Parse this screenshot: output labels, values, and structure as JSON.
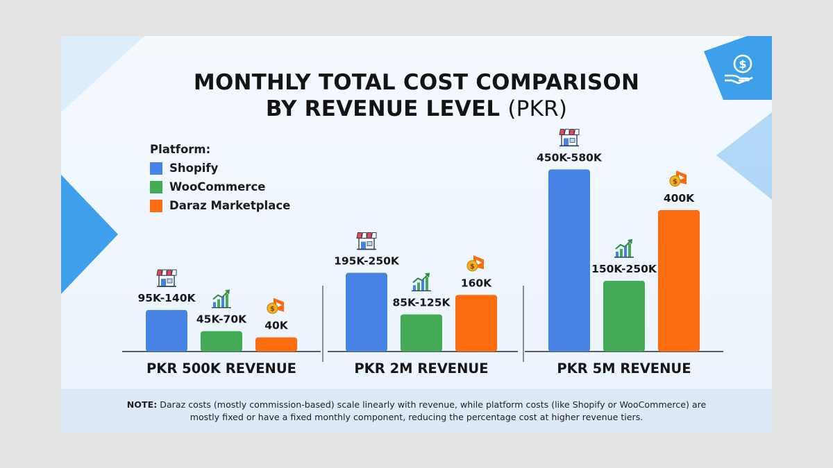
{
  "title_line1": "MONTHLY TOTAL COST COMPARISON",
  "title_line2": "BY REVENUE LEVEL",
  "title_unit": "(PKR)",
  "legend": {
    "title": "Platform:",
    "items": [
      "Shopify",
      "WooCommerce",
      "Daraz Marketplace"
    ]
  },
  "note": {
    "label": "NOTE:",
    "text": "Daraz costs (mostly commission-based) scale linearly with revenue, while platform costs (like Shopify or WooCommerce) are mostly fixed or have a fixed monthly component, reducing the percentage cost at higher revenue tiers."
  },
  "icons": {
    "shopify": "storefront-icon",
    "woocommerce": "growth-chart-icon",
    "daraz": "coin-play-icon",
    "corner": "hand-dollar-icon"
  },
  "chart_data": {
    "type": "bar",
    "categories": [
      "PKR 500K REVENUE",
      "PKR 2M REVENUE",
      "PKR 5M REVENUE"
    ],
    "series": [
      {
        "name": "Shopify",
        "color": "#4582e2",
        "icon": "storefront-icon",
        "values": [
          117.5,
          222.5,
          515
        ],
        "labels": [
          "95K-140K",
          "195K-250K",
          "450K-580K"
        ]
      },
      {
        "name": "WooCommerce",
        "color": "#43ab55",
        "icon": "growth-chart-icon",
        "values": [
          57.5,
          105,
          200
        ],
        "labels": [
          "45K-70K",
          "85K-125K",
          "150K-250K"
        ]
      },
      {
        "name": "Daraz Marketplace",
        "color": "#fb6b10",
        "icon": "coin-play-icon",
        "values": [
          40,
          160,
          400
        ],
        "labels": [
          "40K",
          "160K",
          "400K"
        ]
      }
    ],
    "legend_position": "top-left",
    "grid": false
  }
}
